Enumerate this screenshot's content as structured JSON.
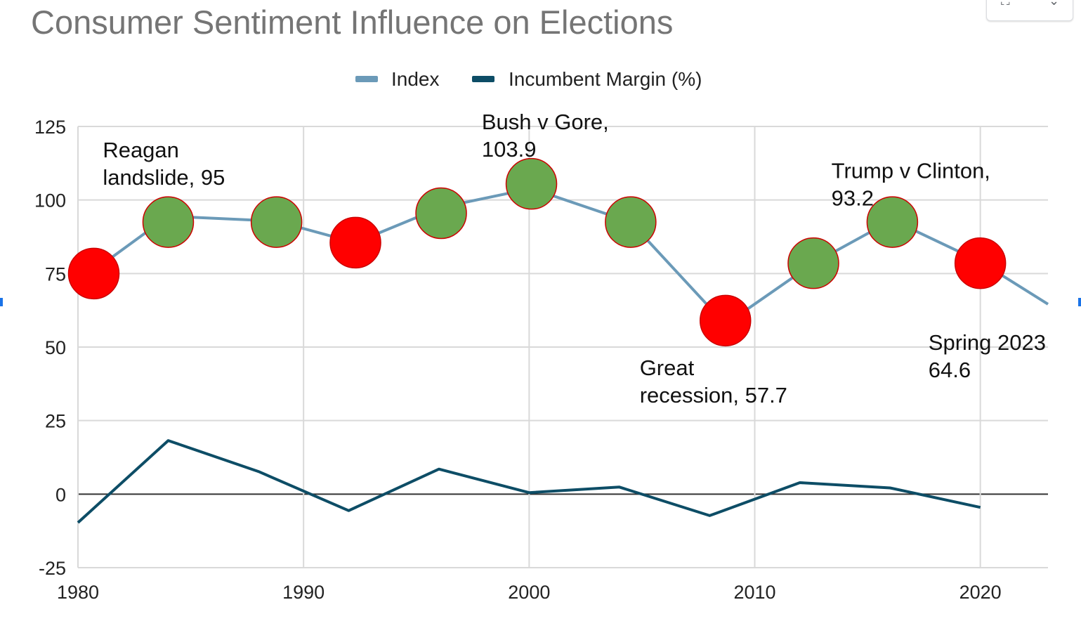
{
  "chart_data": {
    "type": "line",
    "title": "Consumer Sentiment Influence on Elections",
    "legend": {
      "position": "top",
      "entries": [
        "Index",
        "Incumbent Margin (%)"
      ]
    },
    "x_ticks": [
      "1980",
      "1990",
      "2000",
      "2010",
      "2020"
    ],
    "y_ticks": [
      "125",
      "100",
      "75",
      "50",
      "25",
      "0",
      "-25"
    ],
    "xlim": [
      1980,
      2023
    ],
    "ylim": [
      -25,
      125
    ],
    "grid": true,
    "series": [
      {
        "name": "Index",
        "color": "#6b9ab8",
        "x": [
          1980.7,
          1984.0,
          1988.8,
          1992.3,
          1996.1,
          2000.1,
          2004.5,
          2008.7,
          2012.6,
          2016.1,
          2020.0,
          2023.0
        ],
        "y": [
          76.0,
          94.5,
          92.8,
          85.5,
          97.5,
          103.9,
          92.5,
          57.7,
          78.5,
          93.2,
          79.0,
          64.6
        ]
      },
      {
        "name": "Incumbent Margin (%)",
        "color": "#0d4d66",
        "x": [
          1980,
          1984,
          1988,
          1992,
          1996,
          2000,
          2004,
          2008,
          2012,
          2016,
          2020
        ],
        "y": [
          -9.7,
          18.2,
          7.7,
          -5.6,
          8.5,
          0.5,
          2.4,
          -7.3,
          3.9,
          2.1,
          -4.5
        ]
      }
    ],
    "markers": [
      {
        "x": 1980.7,
        "y": 75.0,
        "color": "#ff0000"
      },
      {
        "x": 1984.0,
        "y": 92.5,
        "color": "#6aa84f"
      },
      {
        "x": 1988.8,
        "y": 92.5,
        "color": "#6aa84f"
      },
      {
        "x": 1992.3,
        "y": 85.5,
        "color": "#ff0000"
      },
      {
        "x": 1996.1,
        "y": 95.5,
        "color": "#6aa84f"
      },
      {
        "x": 2000.1,
        "y": 105.5,
        "color": "#6aa84f"
      },
      {
        "x": 2004.5,
        "y": 92.5,
        "color": "#6aa84f"
      },
      {
        "x": 2008.7,
        "y": 59.0,
        "color": "#ff0000"
      },
      {
        "x": 2012.6,
        "y": 78.5,
        "color": "#6aa84f"
      },
      {
        "x": 2016.1,
        "y": 92.5,
        "color": "#6aa84f"
      },
      {
        "x": 2020.0,
        "y": 78.5,
        "color": "#ff0000"
      }
    ],
    "annotations": [
      {
        "lines": [
          "Reagan",
          "landslide, 95"
        ],
        "x": 1981.1,
        "y": 114.5
      },
      {
        "lines": [
          "Bush v Gore,",
          "103.9"
        ],
        "x": 1997.9,
        "y": 124.0
      },
      {
        "lines": [
          "Trump v Clinton,",
          "93.2"
        ],
        "x": 2013.4,
        "y": 107.5
      },
      {
        "lines": [
          "Great",
          "recession, 57.7"
        ],
        "x": 2004.9,
        "y": 40.5
      },
      {
        "lines": [
          "Spring 2023",
          "64.6"
        ],
        "x": 2017.7,
        "y": 49.0
      }
    ]
  }
}
